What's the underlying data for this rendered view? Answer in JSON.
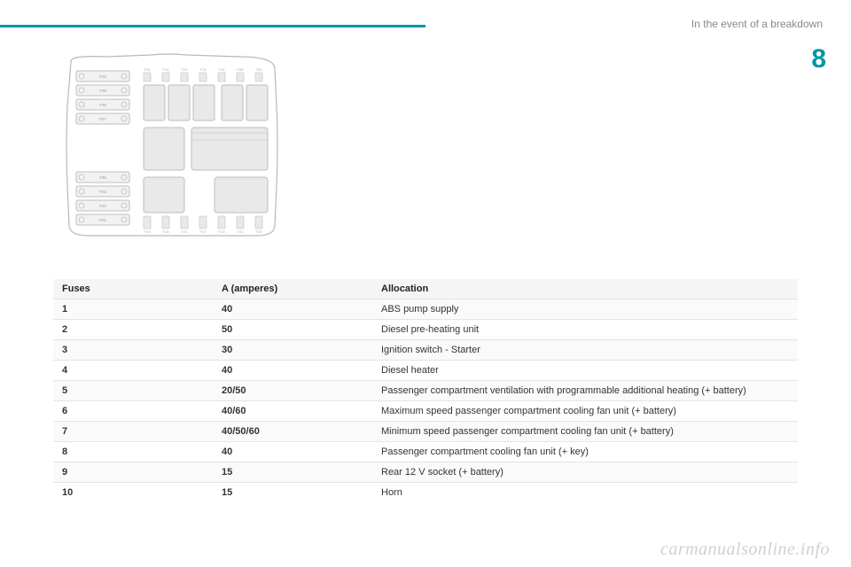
{
  "header": {
    "section_title": "In the event of a breakdown",
    "chapter_number": "8"
  },
  "diagram": {
    "outline_color": "#b8b8b8",
    "box_fill": "#e9e9e9",
    "box_stroke": "#bdbdbd",
    "left_strips": [
      "F03",
      "F09",
      "F06",
      "F07"
    ],
    "left_strips2": [
      "F05",
      "F02",
      "F04",
      "F01"
    ],
    "top_labels": [
      "F24",
      "F14",
      "F23",
      "F15",
      "F16",
      "F08",
      "F30"
    ],
    "bottom_labels": [
      "F29",
      "F18",
      "F21",
      "F17",
      "F13",
      "F22",
      "F28"
    ]
  },
  "table": {
    "columns": [
      "Fuses",
      "A (amperes)",
      "Allocation"
    ],
    "rows": [
      {
        "fuse": "1",
        "amp": "40",
        "alloc": "ABS pump supply"
      },
      {
        "fuse": "2",
        "amp": "50",
        "alloc": "Diesel pre-heating unit"
      },
      {
        "fuse": "3",
        "amp": "30",
        "alloc": "Ignition switch - Starter"
      },
      {
        "fuse": "4",
        "amp": "40",
        "alloc": "Diesel heater"
      },
      {
        "fuse": "5",
        "amp": "20/50",
        "alloc": "Passenger compartment ventilation with programmable additional heating (+ battery)"
      },
      {
        "fuse": "6",
        "amp": "40/60",
        "alloc": "Maximum speed passenger compartment cooling fan unit (+ battery)"
      },
      {
        "fuse": "7",
        "amp": "40/50/60",
        "alloc": "Minimum speed passenger compartment cooling fan unit (+ battery)"
      },
      {
        "fuse": "8",
        "amp": "40",
        "alloc": "Passenger compartment cooling fan unit (+ key)"
      },
      {
        "fuse": "9",
        "amp": "15",
        "alloc": "Rear 12 V socket (+ battery)"
      },
      {
        "fuse": "10",
        "amp": "15",
        "alloc": "Horn"
      }
    ]
  },
  "watermark": "carmanualsonline.info"
}
